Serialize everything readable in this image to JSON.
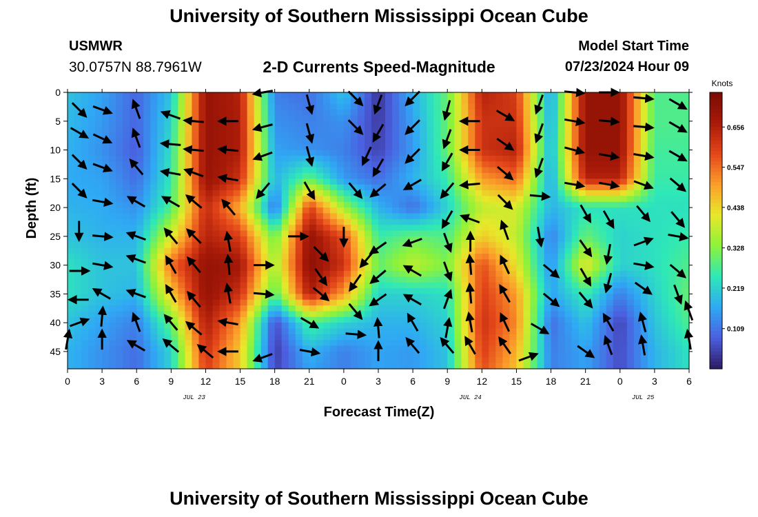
{
  "header": {
    "title": "University of Southern Mississippi Ocean Cube",
    "station": "USMWR",
    "coords": "30.0757N  88.7961W",
    "product": "2-D Currents Speed-Magnitude",
    "model_start_label": "Model Start Time",
    "model_start_value": "07/23/2024 Hour 09"
  },
  "footer": {
    "title": "University of Southern Mississippi Ocean Cube"
  },
  "colors": {
    "scale": [
      "#2f1a62",
      "#4b5fe0",
      "#2fa9f4",
      "#2ee8b8",
      "#8df23a",
      "#e8e82a",
      "#fb9e2a",
      "#e4461a",
      "#a81a08",
      "#7a0a03"
    ],
    "arrow": "#000000"
  },
  "chart_data": {
    "type": "heatmap",
    "xlabel": "Forecast Time(Z)",
    "ylabel": "Depth (ft)",
    "x_tick_labels": [
      "0",
      "3",
      "6",
      "9",
      "12",
      "15",
      "18",
      "21",
      "0",
      "3",
      "6",
      "9",
      "12",
      "15",
      "18",
      "21",
      "0",
      "3",
      "6"
    ],
    "x_range_hours": [
      0,
      54
    ],
    "date_labels": [
      {
        "hour": 11,
        "text": "JUL 23"
      },
      {
        "hour": 35,
        "text": "JUL 24"
      },
      {
        "hour": 50,
        "text": "JUL 25"
      }
    ],
    "y_ticks": [
      0,
      5,
      10,
      15,
      20,
      25,
      30,
      35,
      40,
      45
    ],
    "ylim": [
      0,
      48
    ],
    "colorbar": {
      "title": "Knots",
      "labels": [
        "0.656",
        "0.547",
        "0.438",
        "0.328",
        "0.219",
        "0.109"
      ],
      "values": [
        0.656,
        0.547,
        0.438,
        0.328,
        0.219,
        0.109
      ],
      "range": [
        0,
        0.75
      ]
    },
    "speed_hours": [
      0,
      3,
      6,
      9,
      12,
      15,
      18,
      21,
      24,
      27,
      30,
      33,
      36,
      39,
      42,
      45,
      48,
      51,
      54
    ],
    "speed_depths": [
      0,
      5,
      10,
      15,
      20,
      25,
      30,
      35,
      40,
      45,
      48
    ],
    "speed": [
      [
        0.2,
        0.16,
        0.09,
        0.2,
        0.7,
        0.65,
        0.12,
        0.1,
        0.2,
        0.03,
        0.18,
        0.3,
        0.65,
        0.6,
        0.15,
        0.7,
        0.7,
        0.28,
        0.28
      ],
      [
        0.19,
        0.15,
        0.09,
        0.22,
        0.7,
        0.66,
        0.14,
        0.12,
        0.14,
        0.04,
        0.16,
        0.3,
        0.62,
        0.62,
        0.16,
        0.7,
        0.7,
        0.28,
        0.28
      ],
      [
        0.18,
        0.14,
        0.08,
        0.24,
        0.7,
        0.66,
        0.16,
        0.14,
        0.12,
        0.05,
        0.15,
        0.3,
        0.62,
        0.65,
        0.17,
        0.7,
        0.7,
        0.27,
        0.27
      ],
      [
        0.17,
        0.16,
        0.1,
        0.25,
        0.7,
        0.62,
        0.18,
        0.3,
        0.15,
        0.1,
        0.18,
        0.26,
        0.5,
        0.55,
        0.16,
        0.65,
        0.65,
        0.26,
        0.26
      ],
      [
        0.18,
        0.17,
        0.14,
        0.28,
        0.63,
        0.48,
        0.1,
        0.6,
        0.35,
        0.18,
        0.1,
        0.22,
        0.38,
        0.4,
        0.18,
        0.24,
        0.24,
        0.24,
        0.24
      ],
      [
        0.2,
        0.18,
        0.18,
        0.4,
        0.65,
        0.6,
        0.3,
        0.7,
        0.58,
        0.26,
        0.3,
        0.28,
        0.45,
        0.38,
        0.12,
        0.3,
        0.22,
        0.24,
        0.26
      ],
      [
        0.24,
        0.2,
        0.2,
        0.55,
        0.7,
        0.68,
        0.35,
        0.72,
        0.62,
        0.3,
        0.38,
        0.32,
        0.58,
        0.42,
        0.14,
        0.42,
        0.22,
        0.24,
        0.28
      ],
      [
        0.24,
        0.2,
        0.18,
        0.45,
        0.7,
        0.62,
        0.28,
        0.66,
        0.5,
        0.22,
        0.22,
        0.24,
        0.6,
        0.5,
        0.16,
        0.26,
        0.12,
        0.22,
        0.3
      ],
      [
        0.2,
        0.16,
        0.12,
        0.3,
        0.66,
        0.5,
        0.06,
        0.28,
        0.22,
        0.18,
        0.18,
        0.22,
        0.62,
        0.52,
        0.1,
        0.2,
        0.05,
        0.2,
        0.28
      ],
      [
        0.18,
        0.14,
        0.1,
        0.22,
        0.62,
        0.45,
        0.04,
        0.18,
        0.12,
        0.16,
        0.15,
        0.2,
        0.6,
        0.48,
        0.12,
        0.16,
        0.06,
        0.18,
        0.24
      ],
      [
        0.18,
        0.14,
        0.1,
        0.22,
        0.6,
        0.45,
        0.05,
        0.16,
        0.12,
        0.16,
        0.15,
        0.2,
        0.58,
        0.46,
        0.12,
        0.16,
        0.06,
        0.18,
        0.24
      ]
    ],
    "vectors": [
      {
        "x": 1,
        "y": 3,
        "dir": 135
      },
      {
        "x": 1,
        "y": 7,
        "dir": 120
      },
      {
        "x": 1,
        "y": 12,
        "dir": 135
      },
      {
        "x": 1,
        "y": 17,
        "dir": 135
      },
      {
        "x": 1,
        "y": 24,
        "dir": 180
      },
      {
        "x": 1,
        "y": 31,
        "dir": 90
      },
      {
        "x": 1,
        "y": 36,
        "dir": 270
      },
      {
        "x": 1,
        "y": 40,
        "dir": 70
      },
      {
        "x": 0,
        "y": 43,
        "dir": 10
      },
      {
        "x": 3,
        "y": 3,
        "dir": 110
      },
      {
        "x": 3,
        "y": 8,
        "dir": 115
      },
      {
        "x": 3,
        "y": 13,
        "dir": 110
      },
      {
        "x": 3,
        "y": 19,
        "dir": 100
      },
      {
        "x": 3,
        "y": 25,
        "dir": 95
      },
      {
        "x": 3,
        "y": 30,
        "dir": 100
      },
      {
        "x": 3,
        "y": 35,
        "dir": 300
      },
      {
        "x": 3,
        "y": 39,
        "dir": 5
      },
      {
        "x": 3,
        "y": 43,
        "dir": 360
      },
      {
        "x": 6,
        "y": 3,
        "dir": 340
      },
      {
        "x": 6,
        "y": 8,
        "dir": 340
      },
      {
        "x": 6,
        "y": 13,
        "dir": 320
      },
      {
        "x": 6,
        "y": 19,
        "dir": 300
      },
      {
        "x": 6,
        "y": 25,
        "dir": 290
      },
      {
        "x": 6,
        "y": 29,
        "dir": 290
      },
      {
        "x": 6,
        "y": 35,
        "dir": 290
      },
      {
        "x": 6,
        "y": 40,
        "dir": 340
      },
      {
        "x": 6,
        "y": 44,
        "dir": 300
      },
      {
        "x": 9,
        "y": 4,
        "dir": 290
      },
      {
        "x": 9,
        "y": 9,
        "dir": 275
      },
      {
        "x": 9,
        "y": 14,
        "dir": 280
      },
      {
        "x": 9,
        "y": 19,
        "dir": 300
      },
      {
        "x": 9,
        "y": 25,
        "dir": 320
      },
      {
        "x": 9,
        "y": 30,
        "dir": 330
      },
      {
        "x": 9,
        "y": 35,
        "dir": 330
      },
      {
        "x": 9,
        "y": 40,
        "dir": 320
      },
      {
        "x": 9,
        "y": 44,
        "dir": 310
      },
      {
        "x": 11,
        "y": 5,
        "dir": 275
      },
      {
        "x": 11,
        "y": 10,
        "dir": 275
      },
      {
        "x": 11,
        "y": 14,
        "dir": 290
      },
      {
        "x": 11,
        "y": 19,
        "dir": 310
      },
      {
        "x": 11,
        "y": 25,
        "dir": 315
      },
      {
        "x": 11,
        "y": 30,
        "dir": 320
      },
      {
        "x": 11,
        "y": 36,
        "dir": 320
      },
      {
        "x": 11,
        "y": 41,
        "dir": 310
      },
      {
        "x": 12,
        "y": 45,
        "dir": 310
      },
      {
        "x": 14,
        "y": 5,
        "dir": 270
      },
      {
        "x": 14,
        "y": 10,
        "dir": 275
      },
      {
        "x": 14,
        "y": 15,
        "dir": 280
      },
      {
        "x": 14,
        "y": 20,
        "dir": 320
      },
      {
        "x": 14,
        "y": 26,
        "dir": 350
      },
      {
        "x": 14,
        "y": 30,
        "dir": 355
      },
      {
        "x": 14,
        "y": 35,
        "dir": 350
      },
      {
        "x": 14,
        "y": 40,
        "dir": 280
      },
      {
        "x": 14,
        "y": 45,
        "dir": 270
      },
      {
        "x": 17,
        "y": 0,
        "dir": 260
      },
      {
        "x": 17,
        "y": 6,
        "dir": 255
      },
      {
        "x": 17,
        "y": 11,
        "dir": 250
      },
      {
        "x": 17,
        "y": 17,
        "dir": 220
      },
      {
        "x": 17,
        "y": 30,
        "dir": 90
      },
      {
        "x": 17,
        "y": 35,
        "dir": 95
      },
      {
        "x": 17,
        "y": 46,
        "dir": 250
      },
      {
        "x": 21,
        "y": 2,
        "dir": 165
      },
      {
        "x": 21,
        "y": 7,
        "dir": 165
      },
      {
        "x": 21,
        "y": 11,
        "dir": 165
      },
      {
        "x": 21,
        "y": 17,
        "dir": 150
      },
      {
        "x": 20,
        "y": 25,
        "dir": 90
      },
      {
        "x": 22,
        "y": 28,
        "dir": 135
      },
      {
        "x": 22,
        "y": 32,
        "dir": 145
      },
      {
        "x": 22,
        "y": 35,
        "dir": 130
      },
      {
        "x": 21,
        "y": 40,
        "dir": 120
      },
      {
        "x": 21,
        "y": 45,
        "dir": 100
      },
      {
        "x": 25,
        "y": 1,
        "dir": 135
      },
      {
        "x": 25,
        "y": 6,
        "dir": 135
      },
      {
        "x": 26,
        "y": 11,
        "dir": 205
      },
      {
        "x": 25,
        "y": 17,
        "dir": 140
      },
      {
        "x": 24,
        "y": 25,
        "dir": 180
      },
      {
        "x": 26,
        "y": 29,
        "dir": 220
      },
      {
        "x": 25,
        "y": 33,
        "dir": 215
      },
      {
        "x": 25,
        "y": 38,
        "dir": 140
      },
      {
        "x": 25,
        "y": 42,
        "dir": 95
      },
      {
        "x": 27,
        "y": 2,
        "dir": 200
      },
      {
        "x": 27,
        "y": 7,
        "dir": 210
      },
      {
        "x": 27,
        "y": 13,
        "dir": 210
      },
      {
        "x": 27,
        "y": 17,
        "dir": 230
      },
      {
        "x": 27,
        "y": 27,
        "dir": 235
      },
      {
        "x": 27,
        "y": 32,
        "dir": 230
      },
      {
        "x": 27,
        "y": 36,
        "dir": 235
      },
      {
        "x": 27,
        "y": 41,
        "dir": 355
      },
      {
        "x": 27,
        "y": 45,
        "dir": 360
      },
      {
        "x": 30,
        "y": 1,
        "dir": 225
      },
      {
        "x": 30,
        "y": 6,
        "dir": 225
      },
      {
        "x": 30,
        "y": 11,
        "dir": 225
      },
      {
        "x": 30,
        "y": 16,
        "dir": 240
      },
      {
        "x": 30,
        "y": 26,
        "dir": 250
      },
      {
        "x": 30,
        "y": 31,
        "dir": 300
      },
      {
        "x": 30,
        "y": 36,
        "dir": 300
      },
      {
        "x": 30,
        "y": 40,
        "dir": 330
      },
      {
        "x": 30,
        "y": 44,
        "dir": 320
      },
      {
        "x": 33,
        "y": 3,
        "dir": 195
      },
      {
        "x": 33,
        "y": 8,
        "dir": 200
      },
      {
        "x": 33,
        "y": 12,
        "dir": 210
      },
      {
        "x": 33,
        "y": 17,
        "dir": 220
      },
      {
        "x": 33,
        "y": 22,
        "dir": 210
      },
      {
        "x": 33,
        "y": 26,
        "dir": 160
      },
      {
        "x": 33,
        "y": 31,
        "dir": 160
      },
      {
        "x": 33,
        "y": 36,
        "dir": 20
      },
      {
        "x": 33,
        "y": 41,
        "dir": 10
      },
      {
        "x": 33,
        "y": 44,
        "dir": 320
      },
      {
        "x": 35,
        "y": 5,
        "dir": 270
      },
      {
        "x": 35,
        "y": 10,
        "dir": 270
      },
      {
        "x": 35,
        "y": 16,
        "dir": 265
      },
      {
        "x": 35,
        "y": 22,
        "dir": 290
      },
      {
        "x": 35,
        "y": 26,
        "dir": 0
      },
      {
        "x": 35,
        "y": 30,
        "dir": 355
      },
      {
        "x": 35,
        "y": 35,
        "dir": 355
      },
      {
        "x": 35,
        "y": 40,
        "dir": 350
      },
      {
        "x": 35,
        "y": 44,
        "dir": 330
      },
      {
        "x": 38,
        "y": 4,
        "dir": 120
      },
      {
        "x": 38,
        "y": 9,
        "dir": 125
      },
      {
        "x": 38,
        "y": 14,
        "dir": 130
      },
      {
        "x": 38,
        "y": 19,
        "dir": 135
      },
      {
        "x": 38,
        "y": 24,
        "dir": 340
      },
      {
        "x": 38,
        "y": 30,
        "dir": 335
      },
      {
        "x": 38,
        "y": 35,
        "dir": 330
      },
      {
        "x": 38,
        "y": 40,
        "dir": 335
      },
      {
        "x": 38,
        "y": 44,
        "dir": 325
      },
      {
        "x": 41,
        "y": 2,
        "dir": 200
      },
      {
        "x": 41,
        "y": 7,
        "dir": 200
      },
      {
        "x": 41,
        "y": 13,
        "dir": 200
      },
      {
        "x": 41,
        "y": 18,
        "dir": 95
      },
      {
        "x": 41,
        "y": 25,
        "dir": 170
      },
      {
        "x": 42,
        "y": 31,
        "dir": 130
      },
      {
        "x": 42,
        "y": 36,
        "dir": 130
      },
      {
        "x": 41,
        "y": 41,
        "dir": 120
      },
      {
        "x": 40,
        "y": 46,
        "dir": 70
      },
      {
        "x": 44,
        "y": 0,
        "dir": 95
      },
      {
        "x": 44,
        "y": 5,
        "dir": 100
      },
      {
        "x": 44,
        "y": 10,
        "dir": 105
      },
      {
        "x": 44,
        "y": 16,
        "dir": 100
      },
      {
        "x": 45,
        "y": 21,
        "dir": 150
      },
      {
        "x": 45,
        "y": 27,
        "dir": 145
      },
      {
        "x": 45,
        "y": 32,
        "dir": 150
      },
      {
        "x": 45,
        "y": 36,
        "dir": 140
      },
      {
        "x": 45,
        "y": 45,
        "dir": 125
      },
      {
        "x": 47,
        "y": 0,
        "dir": 90
      },
      {
        "x": 47,
        "y": 5,
        "dir": 95
      },
      {
        "x": 47,
        "y": 11,
        "dir": 100
      },
      {
        "x": 47,
        "y": 16,
        "dir": 100
      },
      {
        "x": 47,
        "y": 22,
        "dir": 150
      },
      {
        "x": 47,
        "y": 28,
        "dir": 190
      },
      {
        "x": 47,
        "y": 33,
        "dir": 195
      },
      {
        "x": 47,
        "y": 40,
        "dir": 330
      },
      {
        "x": 47,
        "y": 44,
        "dir": 340
      },
      {
        "x": 50,
        "y": 1,
        "dir": 95
      },
      {
        "x": 50,
        "y": 6,
        "dir": 95
      },
      {
        "x": 50,
        "y": 11,
        "dir": 100
      },
      {
        "x": 50,
        "y": 16,
        "dir": 110
      },
      {
        "x": 50,
        "y": 21,
        "dir": 140
      },
      {
        "x": 50,
        "y": 26,
        "dir": 70
      },
      {
        "x": 50,
        "y": 30,
        "dir": 100
      },
      {
        "x": 50,
        "y": 34,
        "dir": 125
      },
      {
        "x": 50,
        "y": 40,
        "dir": 345
      },
      {
        "x": 50,
        "y": 44,
        "dir": 350
      },
      {
        "x": 53,
        "y": 2,
        "dir": 120
      },
      {
        "x": 53,
        "y": 6,
        "dir": 120
      },
      {
        "x": 53,
        "y": 11,
        "dir": 120
      },
      {
        "x": 53,
        "y": 16,
        "dir": 130
      },
      {
        "x": 53,
        "y": 22,
        "dir": 140
      },
      {
        "x": 53,
        "y": 25,
        "dir": 100
      },
      {
        "x": 53,
        "y": 31,
        "dir": 130
      },
      {
        "x": 53,
        "y": 35,
        "dir": 160
      },
      {
        "x": 54,
        "y": 38,
        "dir": 340
      },
      {
        "x": 54,
        "y": 43,
        "dir": 350
      }
    ]
  }
}
